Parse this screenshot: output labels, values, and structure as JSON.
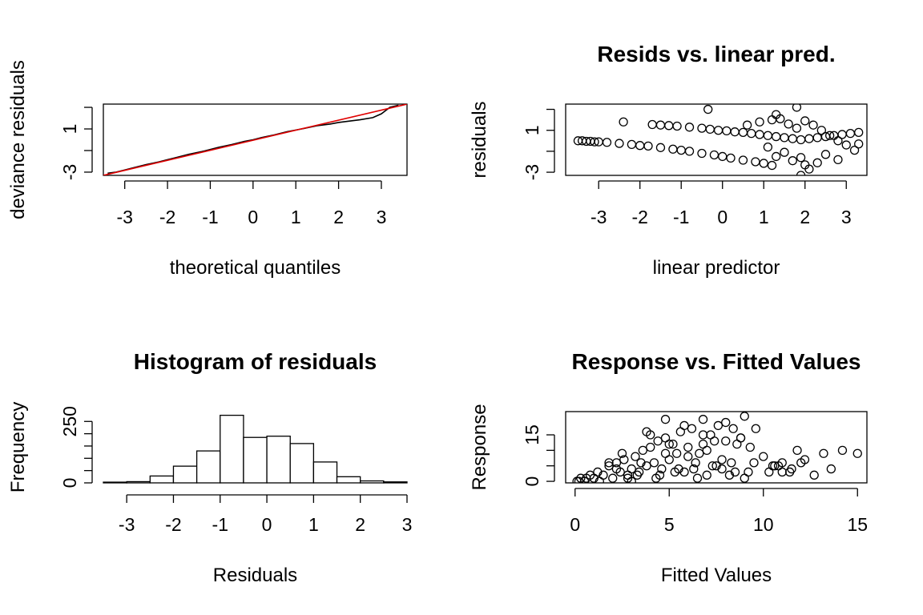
{
  "chart_data": [
    {
      "type": "scatter",
      "title": "",
      "xlabel": "theoretical quantiles",
      "ylabel": "deviance residuals",
      "xticks": [
        -3,
        -2,
        -1,
        0,
        1,
        2,
        3
      ],
      "yticks": [
        -3,
        -1,
        1,
        3
      ],
      "ytick_labels": [
        "-3",
        "",
        "1",
        ""
      ],
      "xlim": [
        -3.5,
        3.6
      ],
      "ylim": [
        -3.3,
        3.3
      ],
      "reference_line": {
        "x": [
          -3.5,
          3.6
        ],
        "y": [
          -3.3,
          3.3
        ],
        "color": "#e00000"
      },
      "points": {
        "x": [
          -3.4,
          -3.2,
          -3.0,
          -2.8,
          -2.5,
          -2.2,
          -2.0,
          -1.8,
          -1.5,
          -1.2,
          -1.0,
          -0.8,
          -0.5,
          -0.2,
          0.0,
          0.2,
          0.5,
          0.8,
          1.0,
          1.2,
          1.5,
          1.8,
          2.0,
          2.2,
          2.5,
          2.8,
          3.0,
          3.2,
          3.4
        ],
        "y": [
          -3.1,
          -3.0,
          -2.8,
          -2.6,
          -2.3,
          -2.05,
          -1.85,
          -1.65,
          -1.35,
          -1.1,
          -0.9,
          -0.7,
          -0.45,
          -0.15,
          0.0,
          0.2,
          0.45,
          0.75,
          0.9,
          1.05,
          1.3,
          1.45,
          1.6,
          1.7,
          1.85,
          2.05,
          2.4,
          3.0,
          3.2
        ]
      }
    },
    {
      "type": "scatter",
      "title": "Resids vs. linear pred.",
      "xlabel": "linear predictor",
      "ylabel": "residuals",
      "xticks": [
        -3,
        -2,
        -1,
        0,
        1,
        2,
        3
      ],
      "yticks": [
        -3,
        -1,
        1,
        3
      ],
      "ytick_labels": [
        "-3",
        "",
        "1",
        ""
      ],
      "xlim": [
        -3.8,
        3.5
      ],
      "ylim": [
        -3.3,
        3.5
      ],
      "points": {
        "x": [
          -3.5,
          -3.4,
          -3.3,
          -3.2,
          -3.1,
          -3.0,
          -2.8,
          -2.5,
          -2.2,
          -2.0,
          -1.8,
          -1.5,
          -1.2,
          -1.0,
          -0.8,
          -0.5,
          -0.2,
          0.0,
          0.2,
          0.5,
          0.8,
          1.0,
          1.2,
          -2.4,
          -1.7,
          -1.5,
          -1.3,
          -1.1,
          -0.8,
          -0.5,
          -0.3,
          -0.1,
          0.1,
          0.3,
          0.5,
          0.7,
          0.9,
          1.1,
          1.3,
          1.5,
          1.7,
          1.9,
          2.1,
          2.3,
          2.5,
          2.7,
          2.9,
          3.1,
          3.3,
          0.6,
          0.9,
          1.2,
          1.4,
          1.6,
          1.8,
          2.0,
          2.2,
          2.4,
          2.6,
          2.8,
          3.0,
          3.2,
          1.3,
          1.7,
          2.0,
          2.3,
          1.9,
          1.5,
          1.1,
          2.5,
          2.8,
          3.3,
          1.9,
          2.1,
          -0.35,
          1.8,
          1.3
        ],
        "y": [
          0.0,
          0.0,
          -0.05,
          -0.05,
          -0.1,
          -0.1,
          -0.15,
          -0.25,
          -0.35,
          -0.45,
          -0.5,
          -0.65,
          -0.8,
          -0.9,
          -1.0,
          -1.2,
          -1.35,
          -1.5,
          -1.65,
          -1.85,
          -2.0,
          -2.15,
          -2.35,
          1.8,
          1.55,
          1.5,
          1.45,
          1.4,
          1.3,
          1.2,
          1.1,
          1.0,
          0.95,
          0.85,
          0.8,
          0.7,
          0.6,
          0.5,
          0.4,
          0.3,
          0.2,
          0.1,
          0.2,
          0.3,
          0.4,
          0.5,
          0.6,
          0.7,
          0.8,
          1.5,
          1.8,
          2.0,
          2.1,
          1.6,
          1.2,
          1.9,
          1.5,
          1.0,
          0.5,
          0.0,
          -0.4,
          -0.9,
          -1.5,
          -1.9,
          -2.3,
          -2.1,
          -1.6,
          -1.1,
          -0.6,
          -1.3,
          -1.8,
          -0.3,
          -3.3,
          -2.7,
          3.0,
          3.2,
          2.5
        ]
      }
    },
    {
      "type": "bar",
      "title": "Histogram of residuals",
      "xlabel": "Residuals",
      "ylabel": "Frequency",
      "bin_edges": [
        -3.5,
        -3.0,
        -2.5,
        -2.0,
        -1.5,
        -1.0,
        -0.5,
        0.0,
        0.5,
        1.0,
        1.5,
        2.0,
        2.5,
        3.0
      ],
      "values": [
        3,
        5,
        28,
        68,
        130,
        275,
        185,
        190,
        160,
        85,
        25,
        8,
        4
      ],
      "xticks": [
        -3,
        -2,
        -1,
        0,
        1,
        2,
        3
      ],
      "yticks": [
        0,
        250
      ],
      "minor_yticks": [
        50,
        100,
        150,
        200
      ],
      "xlim": [
        -3.5,
        3.0
      ],
      "ylim": [
        0,
        290
      ]
    },
    {
      "type": "scatter",
      "title": "Response vs. Fitted Values",
      "xlabel": "Fitted Values",
      "ylabel": "Response",
      "xticks": [
        0,
        5,
        10,
        15
      ],
      "yticks": [
        0,
        15
      ],
      "minor_yticks": [
        5,
        10
      ],
      "xlim": [
        -0.5,
        15.5
      ],
      "ylim": [
        -0.5,
        22.5
      ],
      "points": {
        "x": [
          0.1,
          0.2,
          0.3,
          0.5,
          0.6,
          0.8,
          1.0,
          1.2,
          1.3,
          1.5,
          1.8,
          2.0,
          2.2,
          2.4,
          2.6,
          2.8,
          3.0,
          3.2,
          3.4,
          3.6,
          3.8,
          4.0,
          4.2,
          4.4,
          4.6,
          4.8,
          5.0,
          5.2,
          5.4,
          5.6,
          5.8,
          6.0,
          6.2,
          6.4,
          6.6,
          6.8,
          7.0,
          7.2,
          7.4,
          7.6,
          7.8,
          8.0,
          8.2,
          8.4,
          8.6,
          8.8,
          9.0,
          9.3,
          9.6,
          10.0,
          10.3,
          10.6,
          11.0,
          11.4,
          11.8,
          12.2,
          12.7,
          13.2,
          13.6,
          14.2,
          15.0,
          2.5,
          3.5,
          4.5,
          5.5,
          6.5,
          7.5,
          8.5,
          9.5,
          4.0,
          5.0,
          6.0,
          7.0,
          8.0,
          9.0,
          3.0,
          4.8,
          6.8,
          9.2,
          1.8,
          2.8,
          3.8,
          4.8,
          5.8,
          6.8,
          7.8,
          8.8,
          10.8,
          11.5,
          12.0,
          11.0,
          10.5,
          2.2,
          3.3,
          4.3,
          5.3,
          6.3,
          7.3,
          8.3
        ],
        "y": [
          0,
          0,
          1,
          0,
          1,
          2,
          1,
          3,
          0,
          2,
          5,
          1,
          6,
          3,
          7,
          2,
          4,
          8,
          3,
          10,
          5,
          11,
          6,
          13,
          4,
          20,
          7,
          12,
          9,
          16,
          3,
          11,
          17,
          6,
          9,
          20,
          10,
          15,
          13,
          18,
          4,
          19,
          2,
          17,
          12,
          14,
          21,
          11,
          17,
          8,
          3,
          5,
          6,
          3,
          10,
          7,
          2,
          9,
          4,
          10,
          9,
          9,
          6,
          2,
          4,
          1,
          5,
          3,
          6,
          15,
          12,
          8,
          2,
          13,
          1,
          0,
          14,
          15,
          3,
          6,
          1,
          16,
          9,
          18,
          12,
          7,
          14,
          5,
          4,
          6,
          3,
          5,
          4,
          2,
          1,
          3,
          4,
          5,
          6
        ]
      }
    }
  ]
}
